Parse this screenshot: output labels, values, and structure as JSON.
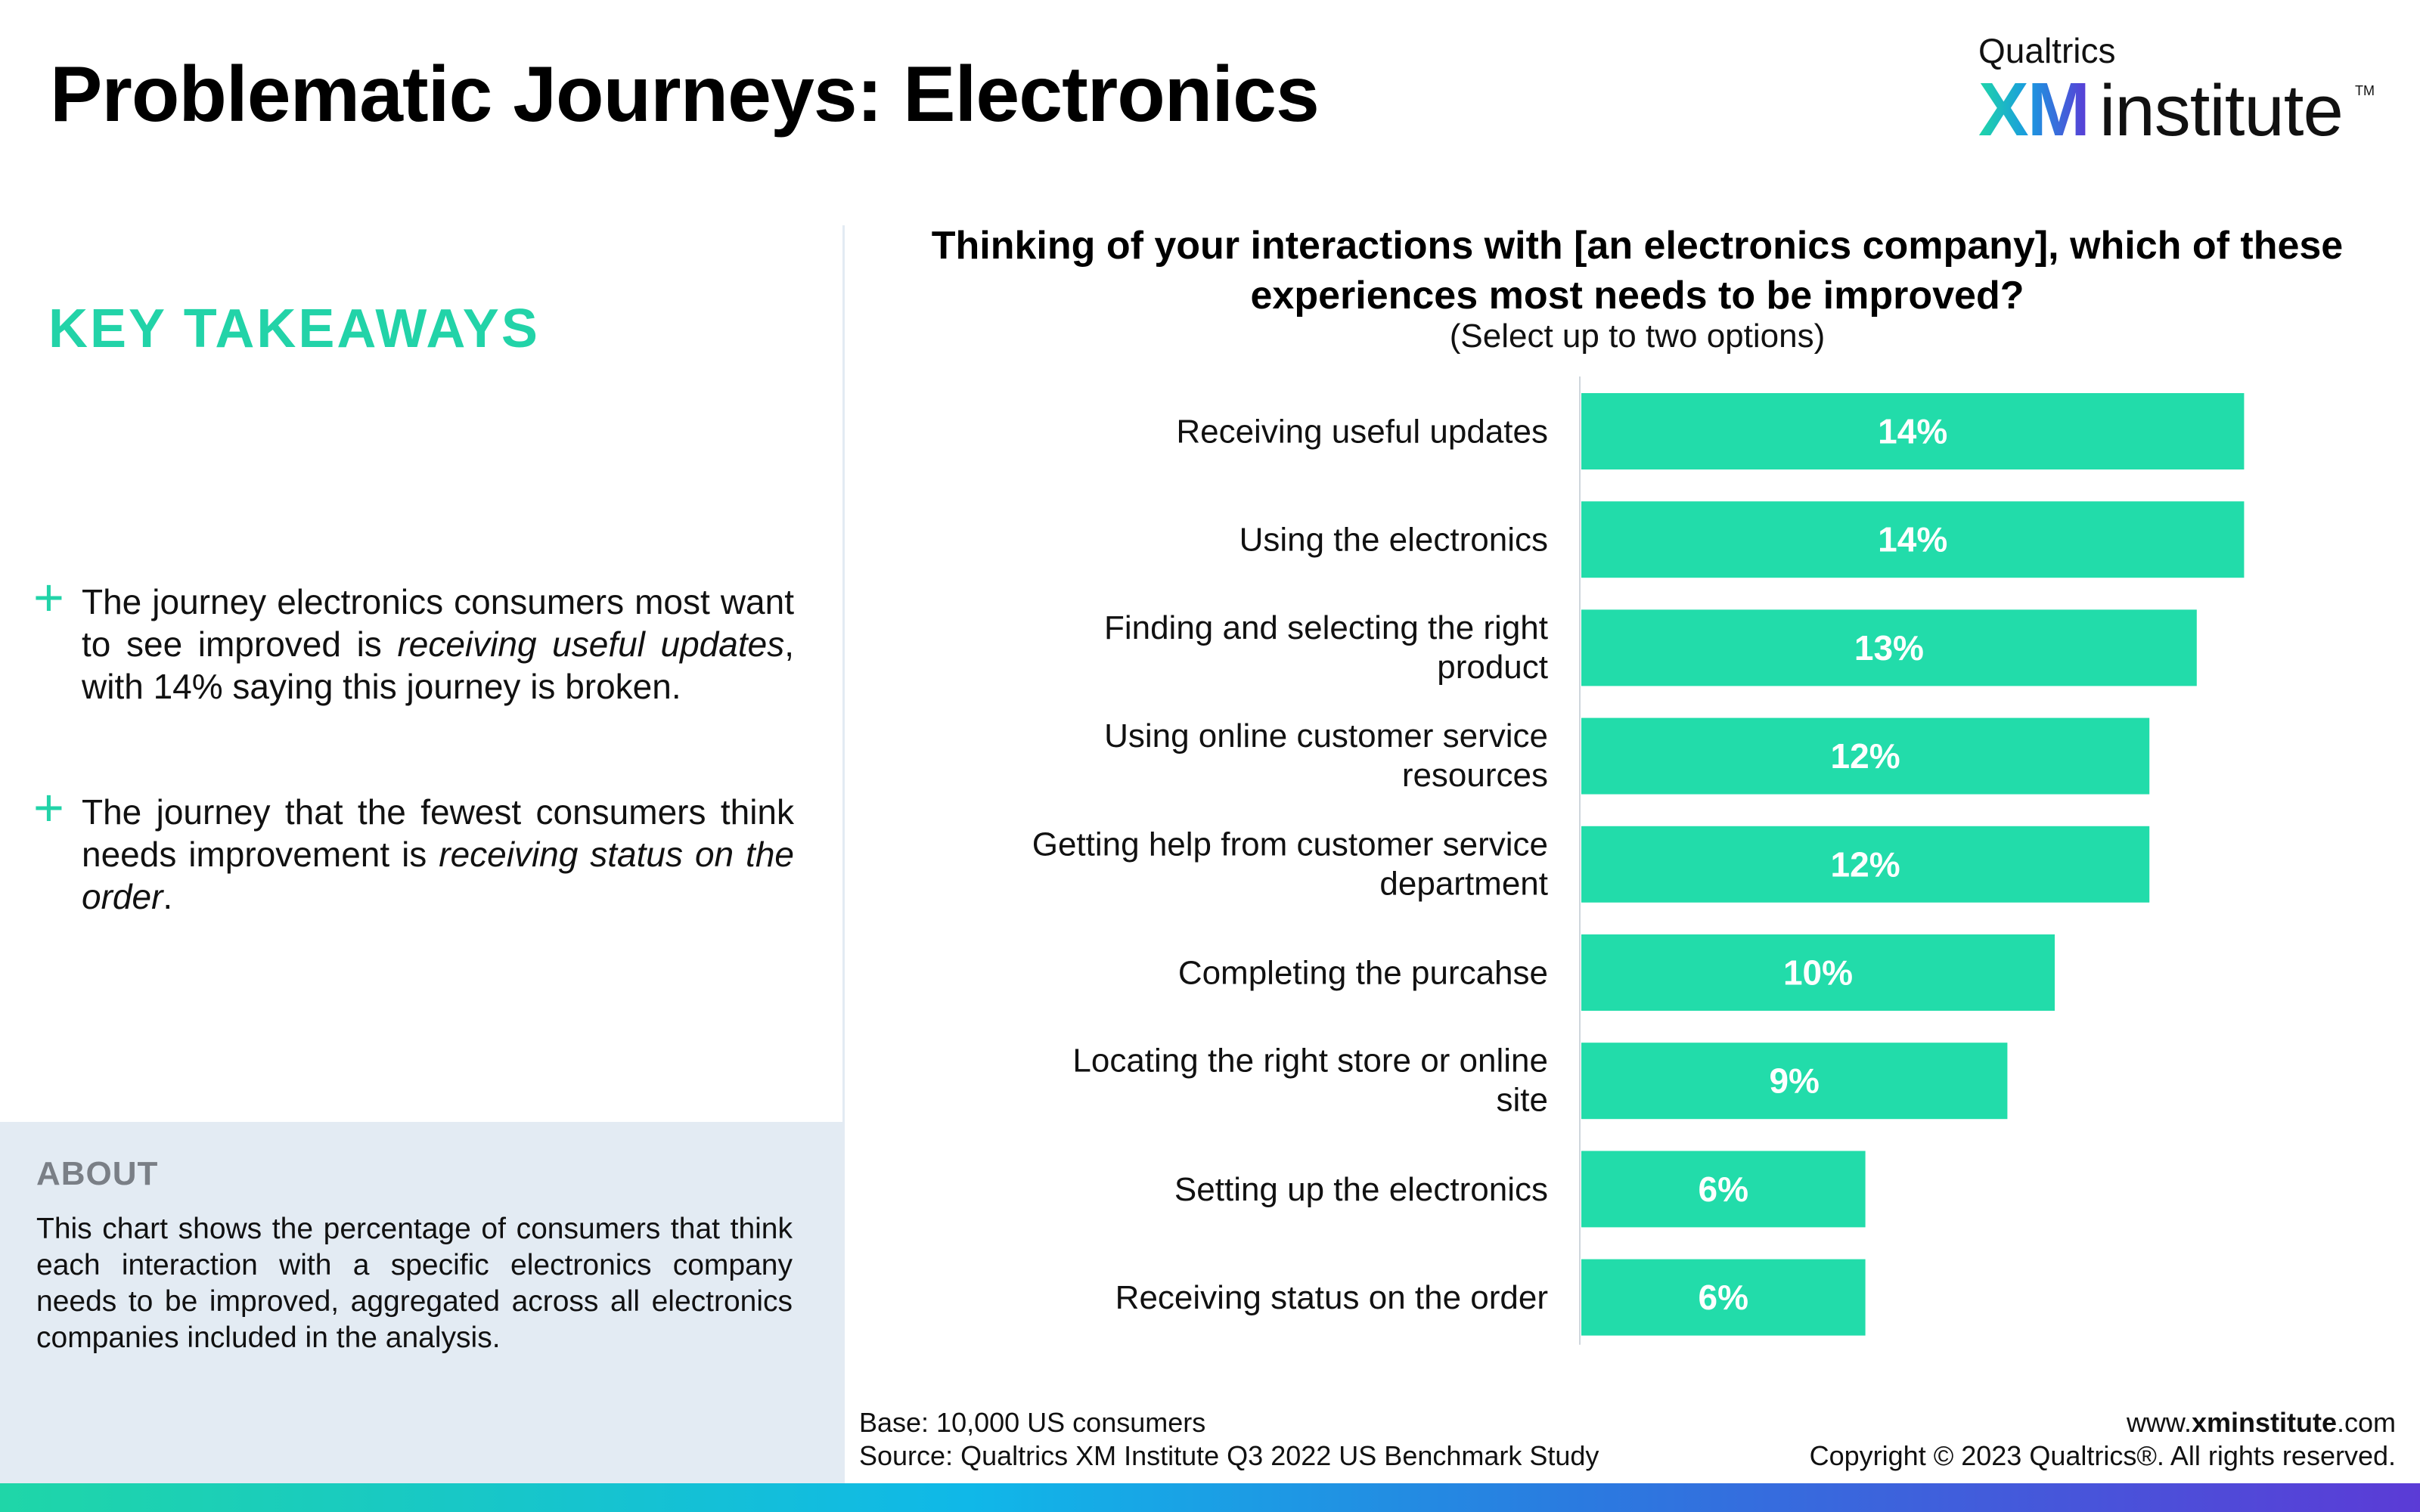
{
  "header": {
    "title": "Problematic Journeys: Electronics",
    "logo_small": "Qualtrics",
    "logo_xm": "XM",
    "logo_institute": "institute",
    "logo_tm": "TM"
  },
  "takeaways": {
    "title": "KEY TAKEAWAYS",
    "items": [
      {
        "plus": "+",
        "pre": "The journey electronics consumers most want to see improved is ",
        "em": "receiving useful updates",
        "post": ", with 14% saying this journey is broken."
      },
      {
        "plus": "+",
        "pre": "The journey that the fewest consumers think needs improvement is ",
        "em": "receiving status on the order",
        "post": "."
      }
    ]
  },
  "about": {
    "title": "ABOUT",
    "text": "This chart shows the percentage of consumers that think each interaction with a specific electronics company needs to be improved, aggregated across all electronics companies included in the analysis."
  },
  "chart_data": {
    "type": "bar",
    "orientation": "horizontal",
    "title": "Thinking of your interactions with [an electronics company], which of these experiences most needs to be improved?",
    "subtitle": "(Select up to two options)",
    "categories": [
      "Receiving useful updates",
      "Using the electronics",
      "Finding and selecting the right product",
      "Using online customer service resources",
      "Getting help from customer service department",
      "Completing the purcahse",
      "Locating the right store or online site",
      "Setting up the electronics",
      "Receiving status on the order"
    ],
    "values": [
      14,
      14,
      13,
      12,
      12,
      10,
      9,
      6,
      6
    ],
    "value_labels": [
      "14%",
      "14%",
      "13%",
      "12%",
      "12%",
      "10%",
      "9%",
      "6%",
      "6%"
    ],
    "bar_color": "#22dcaa",
    "label_color": "#ffffff",
    "xlim": [
      0,
      16
    ],
    "grid": false,
    "legend": "none"
  },
  "footer": {
    "base": "Base: 10,000 US consumers",
    "source": "Source: Qualtrics XM Institute Q3 2022 US Benchmark Study",
    "site_pre": "www.",
    "site_bold": "xminstitute",
    "site_post": ".com",
    "copyright": "Copyright © 2023 Qualtrics®. All rights reserved."
  }
}
